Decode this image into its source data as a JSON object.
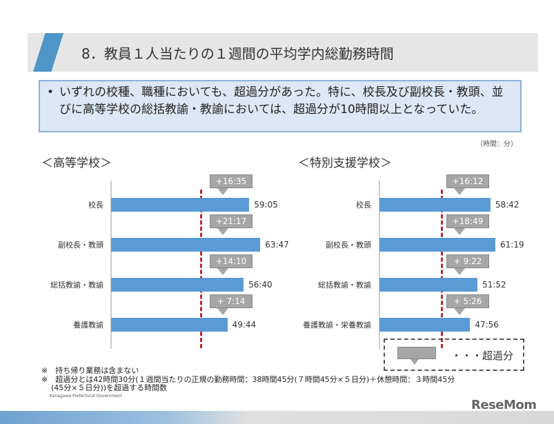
{
  "header": {
    "title": "8．教員１人当たりの１週間の平均学内総勤務時間"
  },
  "summary": {
    "bullet": "•",
    "text": "いずれの校種、職種においても、超過分があった。特に、校長及び副校長・教頭、並びに高等学校の総括教諭・教諭においては、超過分が10時間以上となっていた。"
  },
  "unit": "（時間：分）",
  "chart_data": [
    {
      "type": "bar",
      "orientation": "horizontal",
      "title": "＜高等学校＞",
      "categories": [
        "校長",
        "副校長・教頭",
        "総括教諭・教諭",
        "養護教諭"
      ],
      "values": [
        "59:05",
        "63:47",
        "56:40",
        "49:44"
      ],
      "values_hours": [
        59.083,
        63.783,
        56.667,
        49.733
      ],
      "overtime": [
        "+16:35",
        "+21:17",
        "+14:10",
        "+ 7:14"
      ],
      "bar_color": "#5b9bd5",
      "reference_line_color": "#c0272d"
    },
    {
      "type": "bar",
      "orientation": "horizontal",
      "title": "＜特別支援学校＞",
      "categories": [
        "校長",
        "副校長・教頭",
        "総括教諭・教諭",
        "養護教諭・栄養教諭"
      ],
      "values": [
        "58:42",
        "61:19",
        "51:52",
        "47:56"
      ],
      "values_hours": [
        58.7,
        61.317,
        51.867,
        47.933
      ],
      "overtime": [
        "+16:12",
        "+18:49",
        "+ 9:22",
        "+ 5:26"
      ],
      "bar_color": "#5b9bd5",
      "reference_line_color": "#c0272d"
    }
  ],
  "legend": {
    "label": "・・・超過分"
  },
  "footnotes": [
    "※　持ち帰り業務は含まない",
    "※　超過分とは42時間30分(１週間当たりの正規の勤務時間：38時間45分(７時間45分×５日分)＋休憩時間：３時間45分",
    "(45分×５日分))を超過する時間数"
  ],
  "credit": "Kanagawa Prefectural Government",
  "watermark": "ReseMom"
}
